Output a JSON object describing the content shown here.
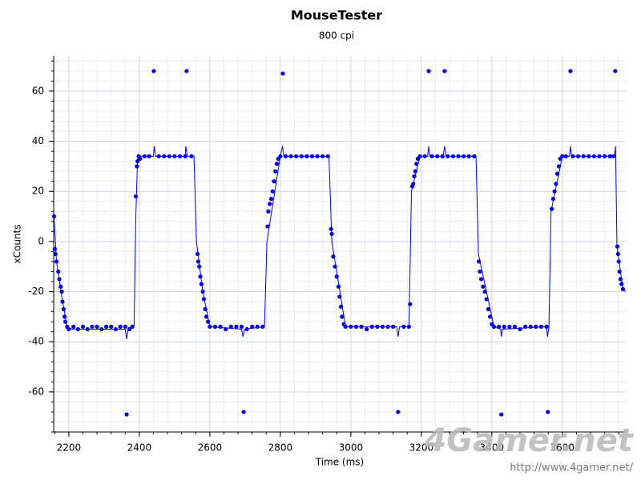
{
  "chart_data": {
    "type": "scatter",
    "title": "MouseTester",
    "subtitle": "800 cpi",
    "x_label": "Time (ms)",
    "y_label": "xCounts",
    "xlim": [
      2157,
      3780
    ],
    "ylim": [
      -76,
      74
    ],
    "xticks": [
      2200,
      2400,
      2600,
      2800,
      3000,
      3200,
      3400,
      3600
    ],
    "yticks": [
      -60,
      -40,
      -20,
      0,
      20,
      40,
      60
    ],
    "grid": true,
    "minor_grid": true,
    "series": [
      {
        "mode": "markers",
        "color": "#0000ff",
        "x": [
          2158,
          2160,
          2162,
          2165,
          2170,
          2173,
          2177,
          2180,
          2182,
          2185,
          2188,
          2190,
          2195,
          2200,
          2213,
          2226,
          2240,
          2253,
          2266,
          2280,
          2293,
          2306,
          2320,
          2333,
          2346,
          2360,
          2364,
          2372,
          2380,
          2390,
          2393,
          2395,
          2398,
          2402,
          2415,
          2428,
          2441,
          2455,
          2470,
          2485,
          2500,
          2515,
          2530,
          2534,
          2548,
          2565,
          2567,
          2570,
          2573,
          2576,
          2580,
          2583,
          2587,
          2590,
          2595,
          2600,
          2615,
          2630,
          2645,
          2660,
          2675,
          2690,
          2696,
          2705,
          2720,
          2735,
          2750,
          2764,
          2766,
          2770,
          2774,
          2778,
          2782,
          2786,
          2790,
          2794,
          2800,
          2807,
          2815,
          2830,
          2845,
          2860,
          2875,
          2890,
          2905,
          2920,
          2935,
          2944,
          2946,
          2950,
          2955,
          2960,
          2965,
          2968,
          2972,
          2975,
          2980,
          2985,
          3000,
          3015,
          3030,
          3045,
          3060,
          3075,
          3090,
          3105,
          3120,
          3134,
          3150,
          3165,
          3168,
          3174,
          3177,
          3180,
          3183,
          3186,
          3190,
          3196,
          3210,
          3221,
          3230,
          3245,
          3260,
          3266,
          3275,
          3290,
          3305,
          3320,
          3335,
          3350,
          3363,
          3366,
          3370,
          3375,
          3380,
          3385,
          3390,
          3395,
          3400,
          3406,
          3420,
          3427,
          3435,
          3450,
          3465,
          3480,
          3495,
          3510,
          3525,
          3540,
          3555,
          3559,
          3570,
          3574,
          3578,
          3582,
          3586,
          3590,
          3594,
          3600,
          3610,
          3623,
          3630,
          3645,
          3660,
          3675,
          3690,
          3705,
          3720,
          3735,
          3745,
          3750,
          3756,
          3758,
          3760,
          3762,
          3765,
          3768,
          3772
        ],
        "values": [
          10,
          -3,
          -5,
          -8,
          -12,
          -15,
          -18,
          -20,
          -24,
          -27,
          -30,
          -32,
          -34,
          -35,
          -34,
          -35,
          -34,
          -35,
          -34,
          -34,
          -35,
          -34,
          -34,
          -35,
          -34,
          -34,
          -69,
          -35,
          -34,
          18,
          30,
          32,
          34,
          33,
          34,
          34,
          68,
          34,
          34,
          34,
          34,
          34,
          34,
          68,
          34,
          -5,
          -8,
          -10,
          -14,
          -17,
          -20,
          -23,
          -27,
          -30,
          -32,
          -34,
          -34,
          -34,
          -35,
          -34,
          -34,
          -34,
          -68,
          -35,
          -34,
          -34,
          -34,
          6,
          12,
          15,
          17,
          20,
          24,
          28,
          31,
          33,
          34,
          67,
          34,
          34,
          34,
          34,
          34,
          34,
          34,
          34,
          34,
          5,
          3,
          -6,
          -10,
          -14,
          -18,
          -22,
          -26,
          -30,
          -33,
          -34,
          -34,
          -34,
          -34,
          -35,
          -34,
          -34,
          -34,
          -34,
          -34,
          -68,
          -34,
          -34,
          -25,
          22,
          23,
          26,
          28,
          31,
          33,
          34,
          34,
          68,
          34,
          34,
          34,
          68,
          34,
          34,
          34,
          34,
          34,
          34,
          -8,
          -12,
          -15,
          -18,
          -20,
          -23,
          -27,
          -30,
          -33,
          -34,
          -34,
          -69,
          -34,
          -34,
          -34,
          -35,
          -34,
          -34,
          -34,
          -34,
          -34,
          -68,
          13,
          17,
          20,
          23,
          27,
          30,
          33,
          34,
          34,
          68,
          34,
          34,
          34,
          34,
          34,
          34,
          34,
          34,
          34,
          68,
          -2,
          -5,
          -8,
          -12,
          -15,
          -17,
          -19
        ]
      },
      {
        "mode": "lines",
        "color": "#0000ff",
        "x": [
          2157,
          2165,
          2180,
          2195,
          2210,
          2360,
          2364,
          2368,
          2385,
          2390,
          2395,
          2400,
          2440,
          2442,
          2446,
          2530,
          2532,
          2536,
          2555,
          2562,
          2580,
          2600,
          2690,
          2694,
          2698,
          2755,
          2762,
          2800,
          2806,
          2810,
          2938,
          2946,
          2985,
          3130,
          3134,
          3138,
          3165,
          3172,
          3196,
          3218,
          3221,
          3224,
          3262,
          3266,
          3270,
          3355,
          3362,
          3406,
          3425,
          3427,
          3430,
          3555,
          3558,
          3562,
          3568,
          3600,
          3620,
          3623,
          3626,
          3748,
          3751,
          3755,
          3772,
          3780
        ],
        "values": [
          12,
          -8,
          -22,
          -34,
          -35,
          -35,
          -39,
          -35,
          -34,
          10,
          33,
          34,
          34,
          38,
          34,
          34,
          38,
          34,
          34,
          0,
          -20,
          -34,
          -35,
          -38,
          -35,
          -34,
          0,
          34,
          38,
          34,
          34,
          0,
          -34,
          -34,
          -38,
          -34,
          -34,
          20,
          34,
          34,
          38,
          34,
          34,
          38,
          34,
          34,
          -5,
          -34,
          -35,
          -38,
          -35,
          -34,
          -38,
          -34,
          12,
          34,
          34,
          38,
          34,
          34,
          38,
          -2,
          -19,
          -20
        ]
      }
    ],
    "watermark": "4Gamer.net",
    "watermark_url": "http://www.4gamer.net/"
  }
}
